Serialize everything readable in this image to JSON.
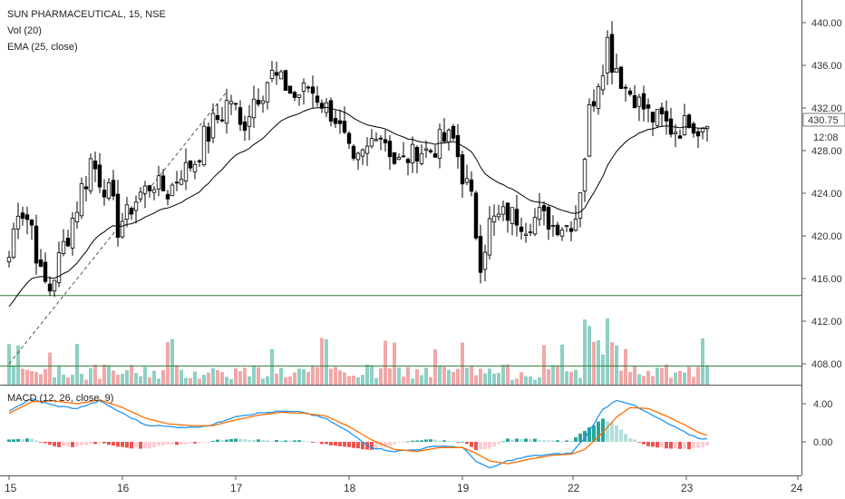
{
  "header": {
    "symbol": "SUN PHARMACEUTICAL, 15, NSE",
    "vol": "Vol (20)",
    "ema": "EMA (25, close)",
    "macd": "MACD (12, 26, close, 9)"
  },
  "price_axis": {
    "ticks": [
      "440.00",
      "436.00",
      "432.00",
      "428.00",
      "424.00",
      "420.00",
      "416.00",
      "412.00",
      "408.00"
    ],
    "last_price": "430.75",
    "countdown": "12:08"
  },
  "macd_axis": {
    "ticks": [
      "4.00",
      "0.00"
    ]
  },
  "time_axis": {
    "labels": [
      "15",
      "16",
      "17",
      "18",
      "19",
      "22",
      "23",
      "24"
    ]
  },
  "colors": {
    "up": "#ffffff",
    "down": "#000000",
    "vol_up": "#8fd0c4",
    "vol_down": "#f0a8a8",
    "ema": "#000000",
    "support": "#2e7d32",
    "macd_line": "#2196f3",
    "signal_line": "#ff6d00",
    "hist_pos_strong": "#26a69a",
    "hist_pos_weak": "#b2dfdb",
    "hist_neg_strong": "#ef5350",
    "hist_neg_weak": "#ffcdd2"
  },
  "chart_data": {
    "type": "candlestick",
    "interval": "15",
    "x_label_index": {
      "15": 0,
      "16": 25,
      "17": 50,
      "18": 75,
      "19": 100,
      "22": 125,
      "23": 150,
      "24": 175
    },
    "price_range": [
      406,
      442
    ],
    "support_levels": [
      414.4,
      407.8
    ],
    "trend_line": {
      "from": [
        0,
        408
      ],
      "to": [
        48,
        433.5
      ]
    },
    "macd_range": [
      -3,
      5
    ],
    "anchors": [
      [
        0,
        418,
        2
      ],
      [
        2,
        423,
        3
      ],
      [
        5,
        421,
        2
      ],
      [
        7,
        416,
        3
      ],
      [
        9,
        415,
        2
      ],
      [
        12,
        419,
        3
      ],
      [
        15,
        423,
        3
      ],
      [
        18,
        427,
        4
      ],
      [
        21,
        425,
        3
      ],
      [
        24,
        421,
        3
      ],
      [
        26,
        422,
        2
      ],
      [
        29,
        424,
        2
      ],
      [
        32,
        425,
        2
      ],
      [
        35,
        424,
        2
      ],
      [
        38,
        426,
        2
      ],
      [
        41,
        427,
        2
      ],
      [
        43,
        429,
        3
      ],
      [
        46,
        431,
        3
      ],
      [
        49,
        433,
        4
      ],
      [
        51,
        430,
        3
      ],
      [
        53,
        432,
        3
      ],
      [
        55,
        434,
        4
      ],
      [
        58,
        435,
        3
      ],
      [
        61,
        434,
        2
      ],
      [
        63,
        433,
        2
      ],
      [
        66,
        434,
        2
      ],
      [
        68,
        433,
        2
      ],
      [
        70,
        432,
        2
      ],
      [
        72,
        431,
        2
      ],
      [
        74,
        429,
        2
      ],
      [
        76,
        426,
        3
      ],
      [
        79,
        428,
        3
      ],
      [
        81,
        430,
        2
      ],
      [
        83,
        429,
        2
      ],
      [
        85,
        427,
        2
      ],
      [
        87,
        427,
        2
      ],
      [
        90,
        428,
        2
      ],
      [
        93,
        428,
        2
      ],
      [
        96,
        429,
        3
      ],
      [
        98,
        429,
        2
      ],
      [
        100,
        426,
        3
      ],
      [
        102,
        423,
        3
      ],
      [
        104,
        418,
        3
      ],
      [
        106,
        421,
        3
      ],
      [
        109,
        422,
        2
      ],
      [
        111,
        422,
        2
      ],
      [
        114,
        421,
        2
      ],
      [
        117,
        422,
        2
      ],
      [
        120,
        421,
        2
      ],
      [
        123,
        421,
        2
      ],
      [
        125,
        422,
        3
      ],
      [
        127,
        428,
        4
      ],
      [
        129,
        434,
        5
      ],
      [
        131,
        437,
        4
      ],
      [
        132,
        438,
        5
      ],
      [
        134,
        436,
        3
      ],
      [
        136,
        434,
        3
      ],
      [
        138,
        433,
        2
      ],
      [
        140,
        432,
        2
      ],
      [
        142,
        431,
        2
      ],
      [
        144,
        431,
        2
      ],
      [
        146,
        430,
        2
      ],
      [
        148,
        430,
        2
      ],
      [
        150,
        431,
        2
      ],
      [
        152,
        430,
        2
      ],
      [
        154,
        430.75,
        1
      ]
    ],
    "macd_anchors": [
      [
        0,
        3.3,
        3.0
      ],
      [
        5,
        4.5,
        4.2
      ],
      [
        10,
        3.8,
        4.3
      ],
      [
        15,
        3.5,
        4.0
      ],
      [
        20,
        4.3,
        4.4
      ],
      [
        25,
        3.0,
        3.6
      ],
      [
        30,
        1.8,
        2.5
      ],
      [
        35,
        1.6,
        1.9
      ],
      [
        40,
        1.5,
        1.7
      ],
      [
        45,
        1.8,
        1.7
      ],
      [
        50,
        2.7,
        2.3
      ],
      [
        55,
        3.0,
        2.8
      ],
      [
        60,
        3.2,
        3.1
      ],
      [
        65,
        3.1,
        3.0
      ],
      [
        70,
        2.4,
        2.7
      ],
      [
        75,
        1.0,
        1.6
      ],
      [
        80,
        -0.6,
        0.2
      ],
      [
        85,
        -1.0,
        -0.8
      ],
      [
        90,
        -0.8,
        -1.0
      ],
      [
        95,
        -0.4,
        -0.6
      ],
      [
        100,
        -0.6,
        -0.6
      ],
      [
        103,
        -2.0,
        -1.2
      ],
      [
        106,
        -2.8,
        -2.0
      ],
      [
        110,
        -2.0,
        -2.3
      ],
      [
        115,
        -1.5,
        -1.8
      ],
      [
        120,
        -1.3,
        -1.4
      ],
      [
        124,
        -1.2,
        -1.3
      ],
      [
        127,
        0.4,
        -0.8
      ],
      [
        131,
        3.4,
        1.0
      ],
      [
        134,
        4.4,
        2.6
      ],
      [
        137,
        4.0,
        3.6
      ],
      [
        141,
        3.0,
        3.5
      ],
      [
        145,
        2.0,
        2.7
      ],
      [
        149,
        1.0,
        1.8
      ],
      [
        152,
        0.4,
        1.0
      ],
      [
        154,
        0.3,
        0.7
      ]
    ]
  }
}
